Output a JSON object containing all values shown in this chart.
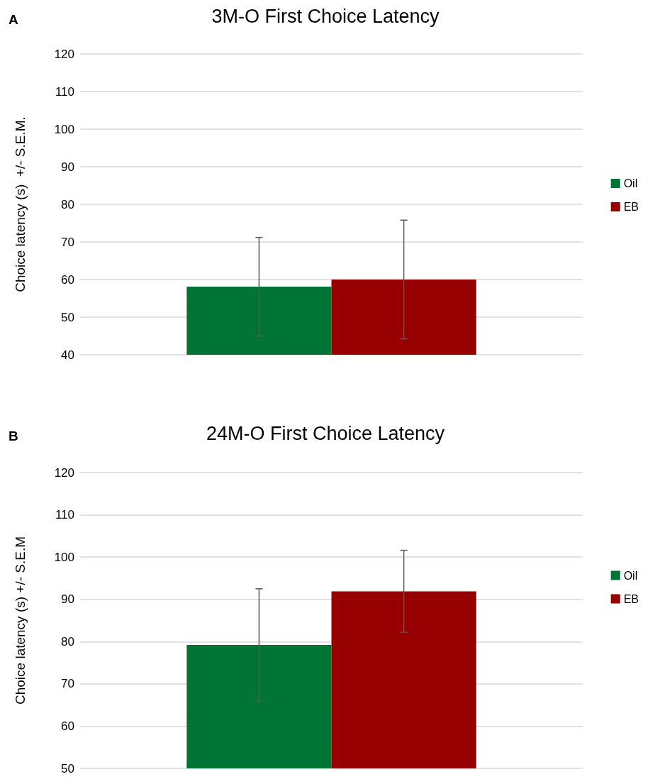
{
  "chart_data": [
    {
      "type": "bar",
      "title": "3M-O First Choice Latency",
      "ylabel": "Choice latency (s)  +/- S.E.M.",
      "annotations": [
        "A"
      ],
      "categories": [
        null
      ],
      "series": [
        {
          "name": "Oil",
          "color": "#007434",
          "values": [
            58.1
          ],
          "errors": [
            13.1
          ]
        },
        {
          "name": "EB",
          "color": "#960000",
          "values": [
            60.0
          ],
          "errors": [
            15.8
          ]
        }
      ],
      "ylim": [
        40,
        120
      ],
      "yticks": [
        40,
        50,
        60,
        70,
        80,
        90,
        100,
        110,
        120
      ],
      "grid": "y",
      "legend": "right"
    },
    {
      "type": "bar",
      "title": "24M-O First Choice Latency",
      "ylabel": "Choice latency (s) +/- S.E.M",
      "annotations": [
        "B"
      ],
      "categories": [
        null
      ],
      "series": [
        {
          "name": "Oil",
          "color": "#007434",
          "values": [
            79.2
          ],
          "errors": [
            13.3
          ]
        },
        {
          "name": "EB",
          "color": "#960000",
          "values": [
            91.9
          ],
          "errors": [
            9.7
          ]
        }
      ],
      "ylim": [
        50,
        120
      ],
      "yticks": [
        50,
        60,
        70,
        80,
        90,
        100,
        110,
        120
      ],
      "grid": "y",
      "legend": "right"
    }
  ]
}
